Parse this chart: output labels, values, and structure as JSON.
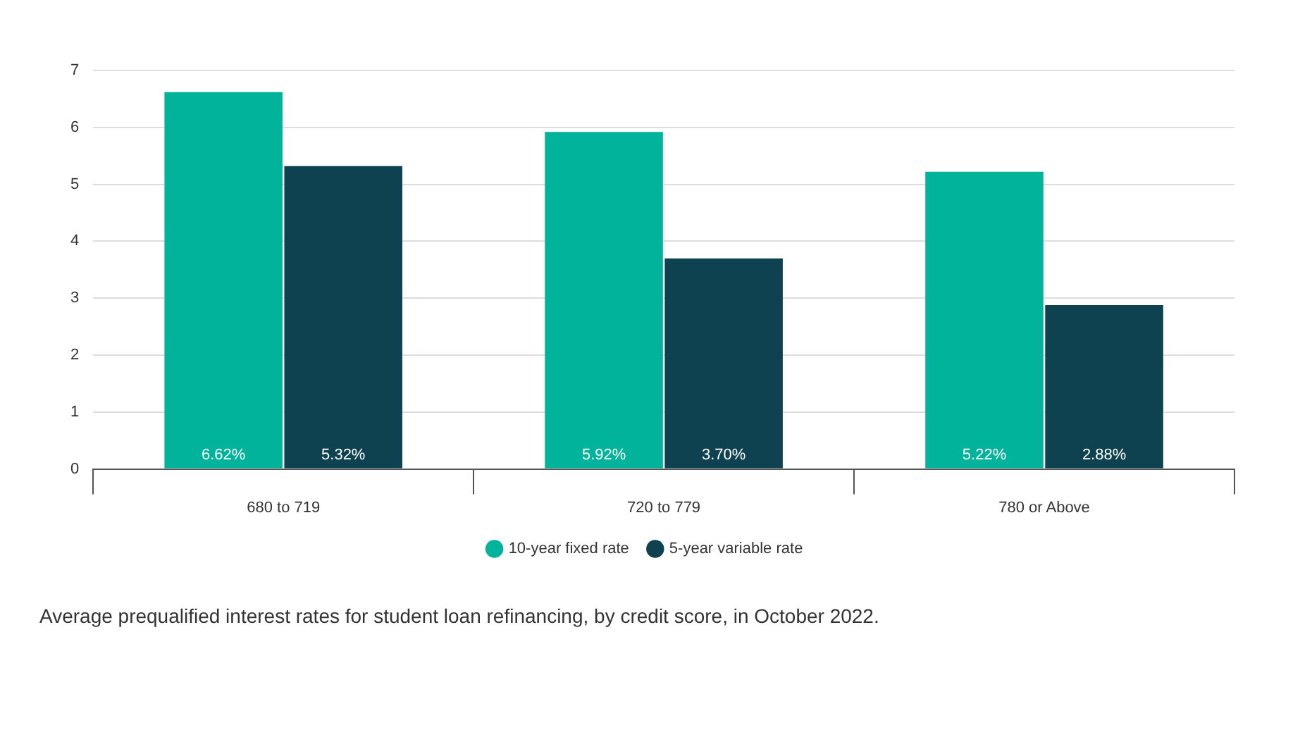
{
  "chart_data": {
    "type": "bar",
    "categories": [
      "680 to 719",
      "720 to 779",
      "780 or Above"
    ],
    "series": [
      {
        "name": "10-year fixed rate",
        "color": "#00b39a",
        "values": [
          6.62,
          5.92,
          5.22
        ],
        "value_labels": [
          "6.62%",
          "5.92%",
          "5.22%"
        ]
      },
      {
        "name": "5-year variable rate",
        "color": "#0f4250",
        "values": [
          5.32,
          3.7,
          2.88
        ],
        "value_labels": [
          "5.32%",
          "3.70%",
          "2.88%"
        ]
      }
    ],
    "ylim": [
      0,
      7
    ],
    "yticks": [
      0,
      1,
      2,
      3,
      4,
      5,
      6,
      7
    ],
    "grid": "y",
    "legend": "bottom",
    "annotations": [
      "Average prequalified interest rates for student loan refinancing, by credit score, in October 2022."
    ]
  }
}
